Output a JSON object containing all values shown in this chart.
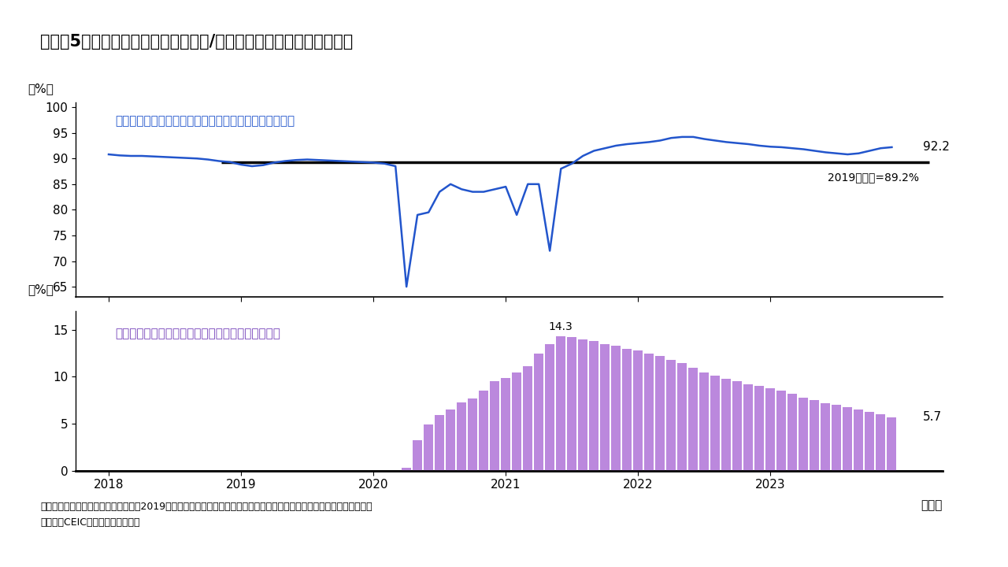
{
  "title": "（図表5）米国家計の消費性向（消費/可処分所得）と超過貯蓄の推移",
  "line_label": "米国家計の消費性向（可処分所得に占める消費の割合）",
  "bar_label": "米国家計の超過貯蓄の年間民間消費額に対する比率",
  "avg_label": "2019年平均=89.2%",
  "avg_value": 89.2,
  "line_color": "#2255cc",
  "bar_color": "#bb88dd",
  "avg_line_color": "#000000",
  "line_end_label": "92.2",
  "bar_end_label": "5.7",
  "bar_peak_label": "14.3",
  "ylabel_top": "（%）",
  "ylabel_bottom": "（%）",
  "xlabel": "（年）",
  "note1": "（注）超過貯蓄は、実際の貯蓄額と、2019年における消費性向の平均水準がコロナ禍後も続いた場合の貯蓄額との差額。",
  "note2": "（出所）CEICよりインベスコ作成",
  "line_ylim": [
    63,
    101
  ],
  "line_yticks": [
    65,
    70,
    75,
    80,
    85,
    90,
    95,
    100
  ],
  "bar_ylim": [
    0,
    17
  ],
  "bar_yticks": [
    0,
    5,
    10,
    15
  ],
  "xlim": [
    2017.75,
    2024.3
  ],
  "xticks": [
    2018,
    2019,
    2020,
    2021,
    2022,
    2023
  ],
  "xticklabels": [
    "2018",
    "2019",
    "2020",
    "2021",
    "2022",
    "2023"
  ],
  "line_data_x": [
    2018.0,
    2018.083,
    2018.167,
    2018.25,
    2018.333,
    2018.417,
    2018.5,
    2018.583,
    2018.667,
    2018.75,
    2018.833,
    2018.917,
    2019.0,
    2019.083,
    2019.167,
    2019.25,
    2019.333,
    2019.417,
    2019.5,
    2019.583,
    2019.667,
    2019.75,
    2019.833,
    2019.917,
    2020.0,
    2020.083,
    2020.167,
    2020.25,
    2020.333,
    2020.417,
    2020.5,
    2020.583,
    2020.667,
    2020.75,
    2020.833,
    2020.917,
    2021.0,
    2021.083,
    2021.167,
    2021.25,
    2021.333,
    2021.417,
    2021.5,
    2021.583,
    2021.667,
    2021.75,
    2021.833,
    2021.917,
    2022.0,
    2022.083,
    2022.167,
    2022.25,
    2022.333,
    2022.417,
    2022.5,
    2022.583,
    2022.667,
    2022.75,
    2022.833,
    2022.917,
    2023.0,
    2023.083,
    2023.167,
    2023.25,
    2023.333,
    2023.417,
    2023.5,
    2023.583,
    2023.667,
    2023.75,
    2023.833,
    2023.917
  ],
  "line_data_y": [
    90.8,
    90.6,
    90.5,
    90.5,
    90.4,
    90.3,
    90.2,
    90.1,
    90.0,
    89.8,
    89.5,
    89.3,
    88.8,
    88.5,
    88.7,
    89.2,
    89.5,
    89.7,
    89.8,
    89.7,
    89.6,
    89.5,
    89.4,
    89.3,
    89.2,
    89.0,
    88.5,
    65.0,
    79.0,
    79.5,
    83.5,
    85.0,
    84.0,
    83.5,
    83.5,
    84.0,
    84.5,
    79.0,
    85.0,
    85.0,
    72.0,
    88.0,
    89.0,
    90.5,
    91.5,
    92.0,
    92.5,
    92.8,
    93.0,
    93.2,
    93.5,
    94.0,
    94.2,
    94.2,
    93.8,
    93.5,
    93.2,
    93.0,
    92.8,
    92.5,
    92.3,
    92.2,
    92.0,
    91.8,
    91.5,
    91.2,
    91.0,
    90.8,
    91.0,
    91.5,
    92.0,
    92.2
  ],
  "bar_data_x": [
    2020.25,
    2020.333,
    2020.417,
    2020.5,
    2020.583,
    2020.667,
    2020.75,
    2020.833,
    2020.917,
    2021.0,
    2021.083,
    2021.167,
    2021.25,
    2021.333,
    2021.417,
    2021.5,
    2021.583,
    2021.667,
    2021.75,
    2021.833,
    2021.917,
    2022.0,
    2022.083,
    2022.167,
    2022.25,
    2022.333,
    2022.417,
    2022.5,
    2022.583,
    2022.667,
    2022.75,
    2022.833,
    2022.917,
    2023.0,
    2023.083,
    2023.167,
    2023.25,
    2023.333,
    2023.417,
    2023.5,
    2023.583,
    2023.667,
    2023.75,
    2023.833,
    2023.917
  ],
  "bar_data_y": [
    0.3,
    3.2,
    4.9,
    5.9,
    6.5,
    7.3,
    7.7,
    8.5,
    9.5,
    9.9,
    10.5,
    11.1,
    12.5,
    13.5,
    14.3,
    14.2,
    14.0,
    13.8,
    13.5,
    13.3,
    13.0,
    12.8,
    12.5,
    12.2,
    11.8,
    11.5,
    11.0,
    10.5,
    10.1,
    9.8,
    9.5,
    9.2,
    9.0,
    8.8,
    8.5,
    8.2,
    7.8,
    7.5,
    7.2,
    7.0,
    6.8,
    6.5,
    6.3,
    6.0,
    5.7
  ]
}
